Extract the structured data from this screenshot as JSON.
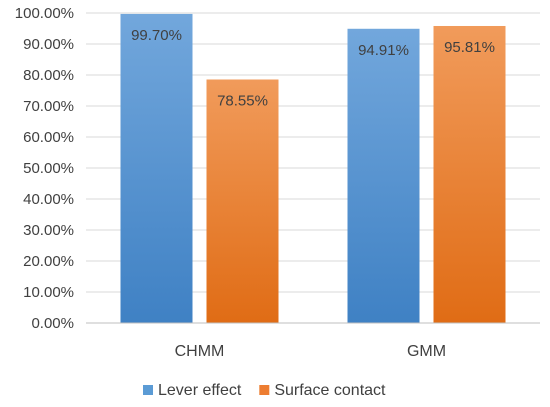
{
  "chart_data": {
    "type": "bar",
    "categories": [
      "CHMM",
      "GMM"
    ],
    "series": [
      {
        "name": "Lever effect",
        "values": [
          99.7,
          94.91
        ],
        "labels": [
          "99.70%",
          "94.91%"
        ],
        "color": "#5b9bd5"
      },
      {
        "name": "Surface contact",
        "values": [
          78.55,
          95.81
        ],
        "labels": [
          "78.55%",
          "95.81%"
        ],
        "color": "#ed7d31"
      }
    ],
    "y_ticks": [
      "0.00%",
      "10.00%",
      "20.00%",
      "30.00%",
      "40.00%",
      "50.00%",
      "60.00%",
      "70.00%",
      "80.00%",
      "90.00%",
      "100.00%"
    ],
    "ylim": [
      0,
      100
    ],
    "y_unit": "%",
    "grid": true,
    "legend_position": "bottom",
    "title": "",
    "xlabel": "",
    "ylabel": ""
  }
}
